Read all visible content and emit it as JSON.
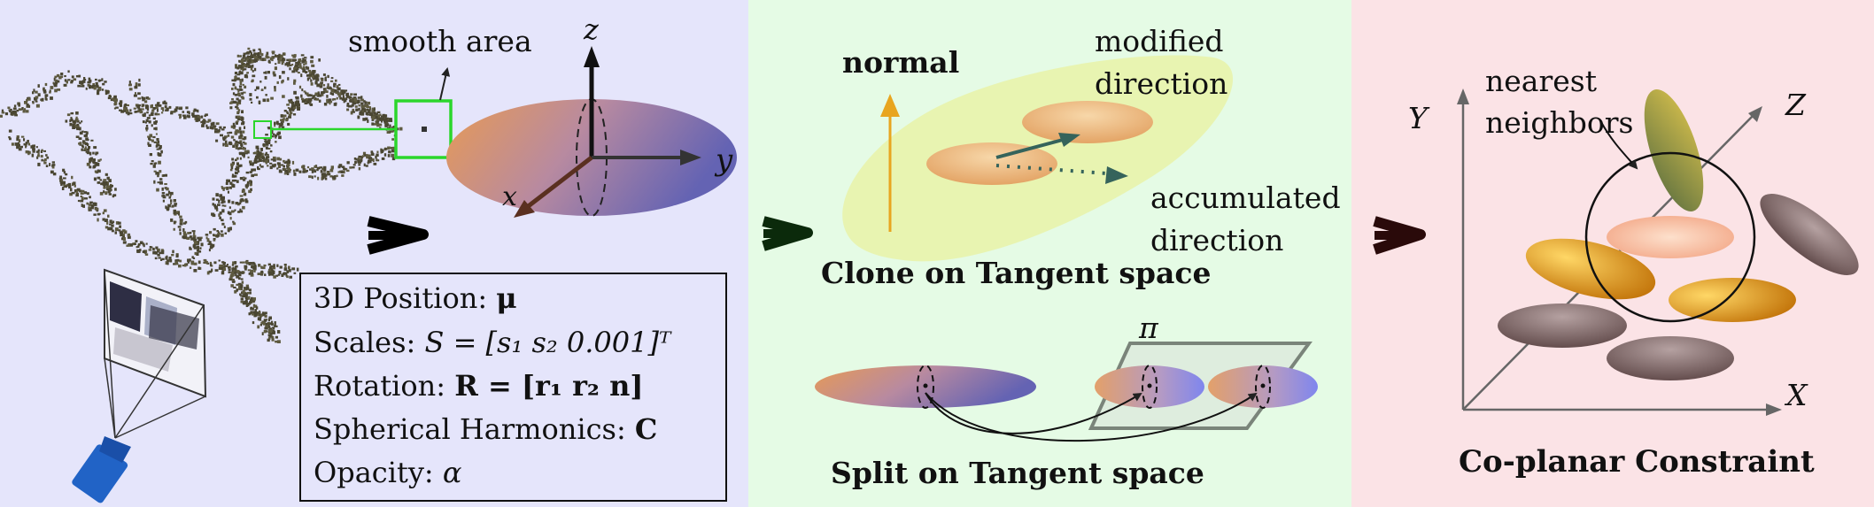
{
  "colors": {
    "panel_left_bg": "#e5e5fb",
    "panel_mid_bg": "#e5fbe5",
    "panel_right_bg": "#fbe3e6",
    "highlight_green": "#2bd62b",
    "orange": "#e08a26",
    "purple": "#6f6bb8",
    "mauve": "#6e5a5a",
    "olive": "#6f7a35",
    "arrow_dark_left": "#000000",
    "arrow_dark_mid": "#0b2a0b",
    "arrow_dark_right": "#2a0a0a"
  },
  "panel_left": {
    "smooth_area_label": "smooth area",
    "axis_z": "z",
    "axis_y": "y",
    "axis_x": "x",
    "properties": [
      {
        "label": "3D Position: ",
        "math": "μ"
      },
      {
        "label": "Scales: ",
        "math": "S = [s₁ s₂ 0.001]ᵀ"
      },
      {
        "label": "Rotation: ",
        "math": "R = [r₁ r₂ n]"
      },
      {
        "label": "Spherical Harmonics: ",
        "math": "C"
      },
      {
        "label": "Opacity: ",
        "math": "α"
      }
    ]
  },
  "panel_mid": {
    "normal_label": "normal",
    "modified_label_1": "modified",
    "modified_label_2": "direction",
    "accumulated_label_1": "accumulated",
    "accumulated_label_2": "direction",
    "clone_title": "Clone on Tangent space",
    "plane_label": "π",
    "split_title": "Split on Tangent space"
  },
  "panel_right": {
    "axis_y": "Y",
    "axis_z": "Z",
    "axis_x": "X",
    "nearest_label_1": "nearest",
    "nearest_label_2": "neighbors",
    "title": "Co-planar Constraint"
  }
}
